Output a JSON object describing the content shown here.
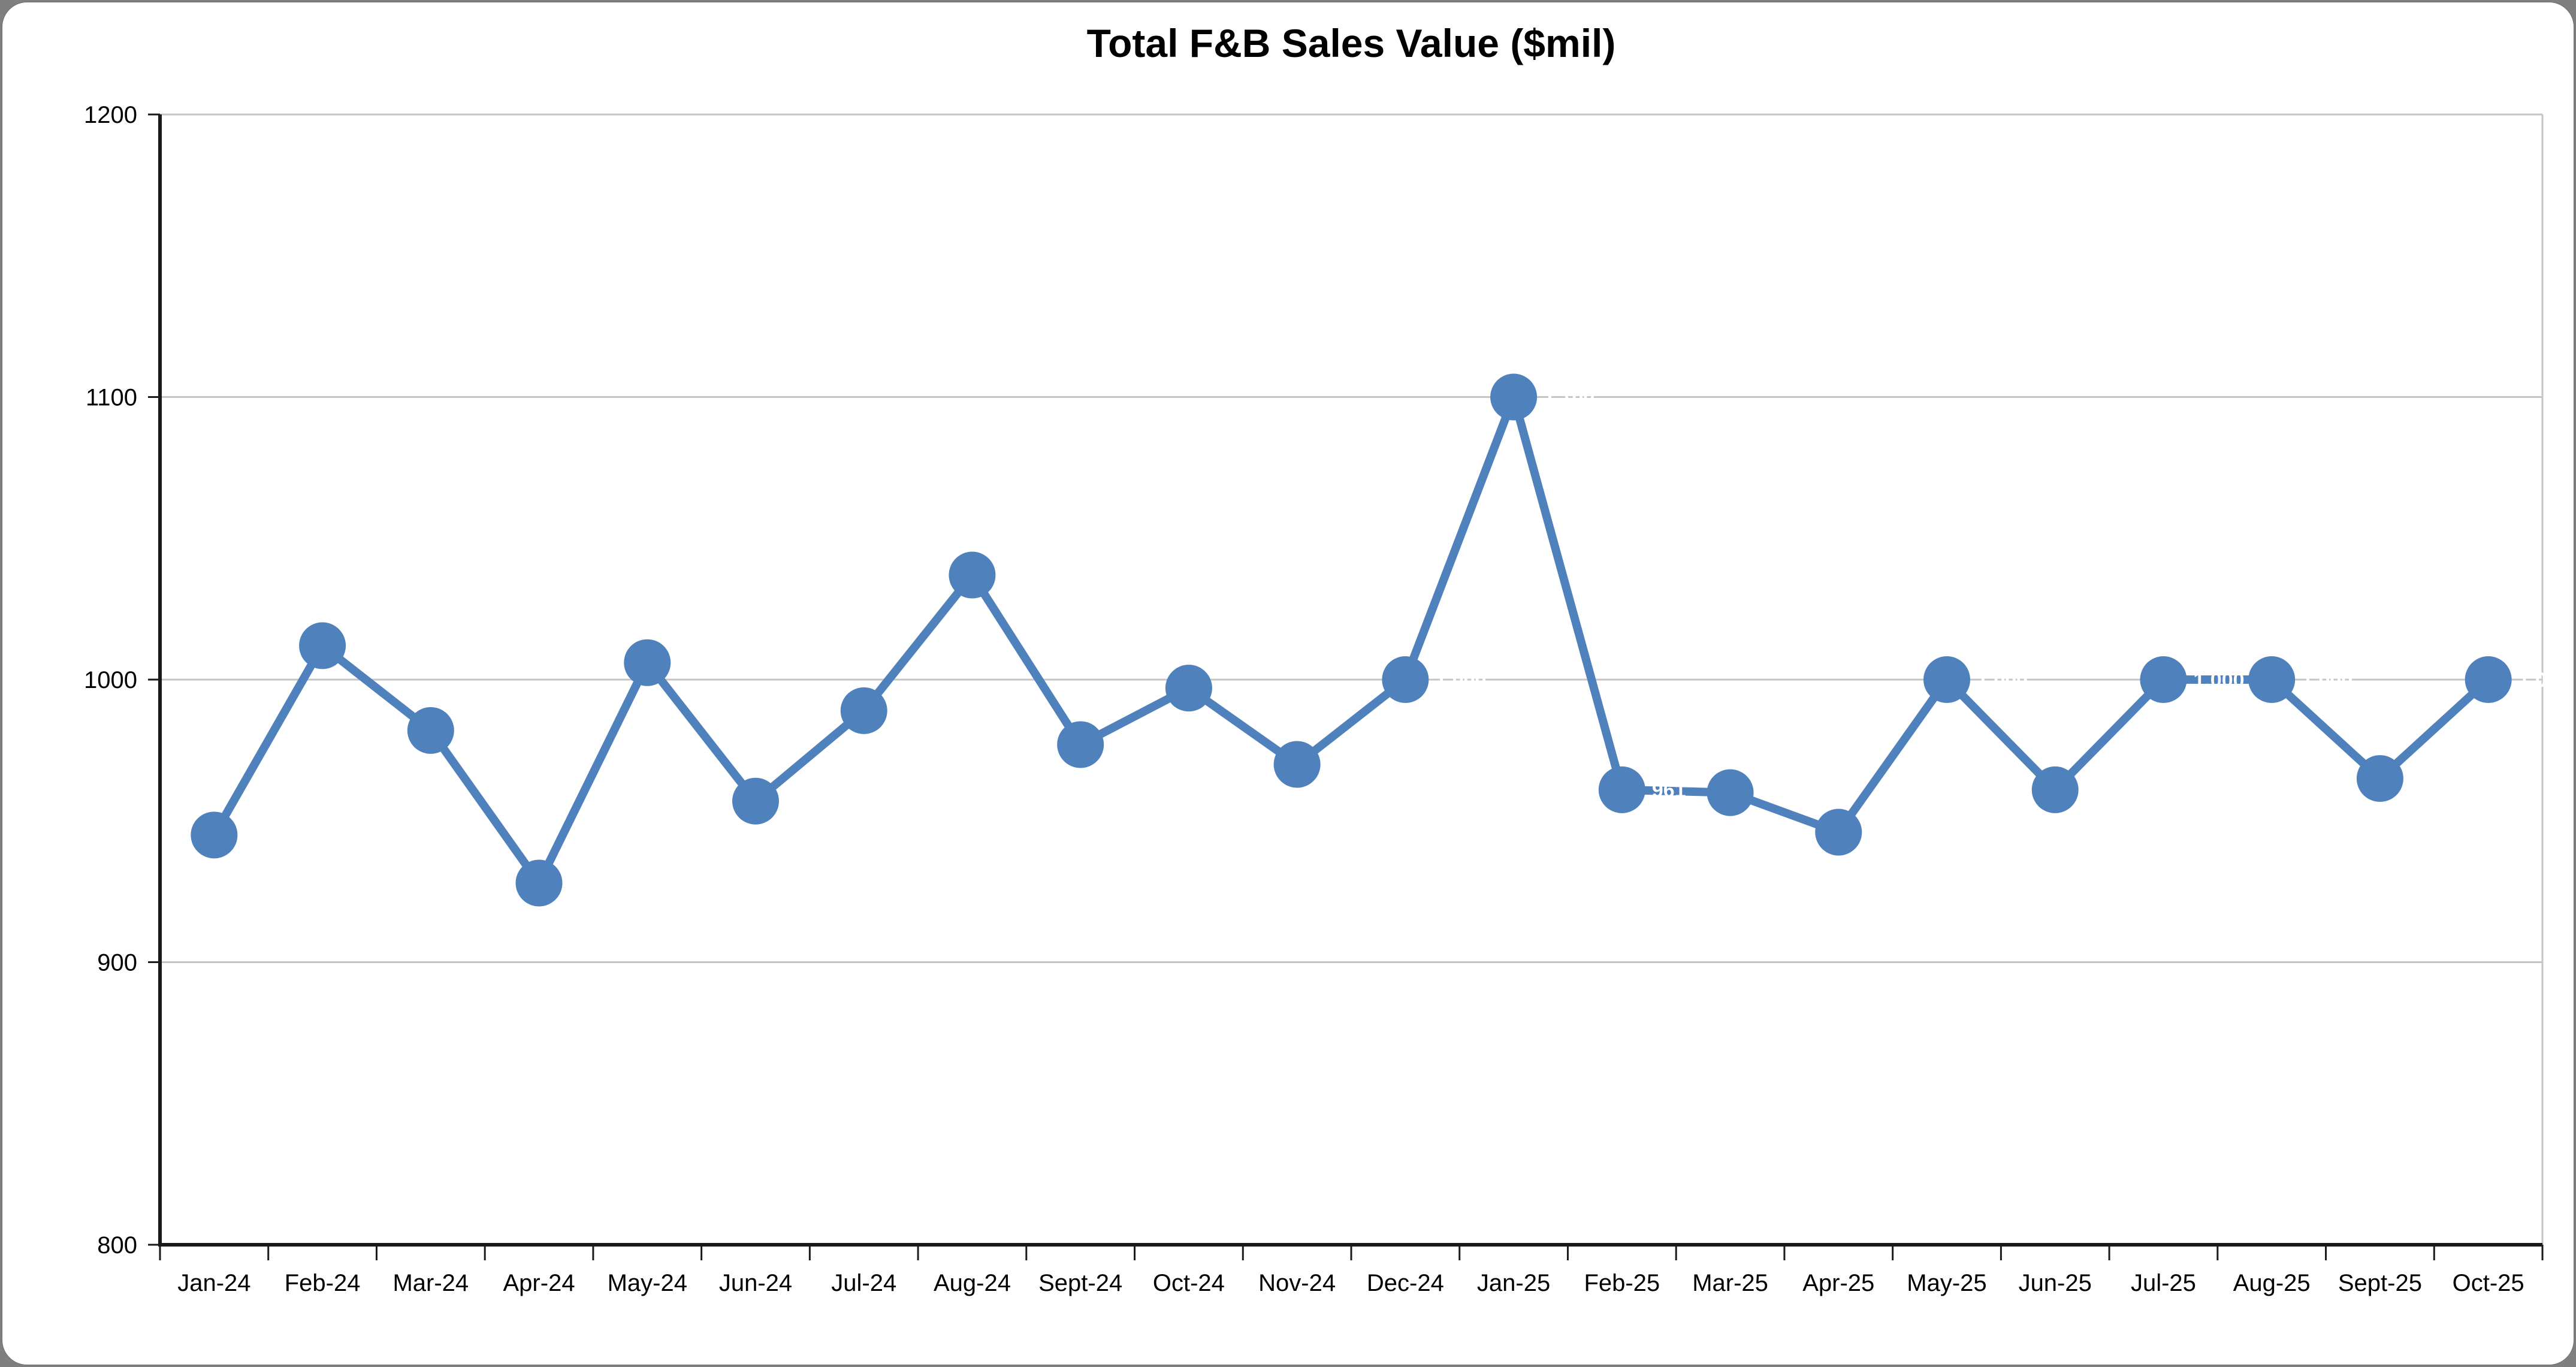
{
  "chart_data": {
    "type": "line",
    "title": "Total F&B Sales Value ($mil)",
    "categories": [
      "Jan-24",
      "Feb-24",
      "Mar-24",
      "Apr-24",
      "May-24",
      "Jun-24",
      "Jul-24",
      "Aug-24",
      "Sept-24",
      "Oct-24",
      "Nov-24",
      "Dec-24",
      "Jan-25",
      "Feb-25",
      "Mar-25",
      "Apr-25",
      "May-25",
      "Jun-25",
      "Jul-25",
      "Aug-25",
      "Sept-25",
      "Oct-25"
    ],
    "values": [
      945,
      1012,
      982,
      928,
      1006,
      957,
      989,
      1037,
      977,
      997,
      970,
      1000,
      1100,
      961,
      960,
      946,
      1000,
      961,
      1000,
      1000,
      965,
      1000
    ],
    "xlabel": "",
    "ylabel": "",
    "ylim": [
      800,
      1200
    ],
    "yticks": [
      800,
      900,
      1000,
      1100,
      1200
    ],
    "ytick_labels": [
      "800",
      "900",
      "1000",
      "1100",
      "1200"
    ],
    "grid": true,
    "legend": "none",
    "marker": "circle",
    "data_labels": {
      "visible": true,
      "position": "right",
      "number_format": "#,##0",
      "color": "#FFFFFF"
    },
    "colors": {
      "series": "#4F81BD",
      "gridline": "#C6C6C6",
      "axis": "#1A1A1A",
      "text": "#000000",
      "data_label": "#FFFFFF",
      "outer_background": "#7F7F7F",
      "plot_background": "#FFFFFF"
    }
  }
}
